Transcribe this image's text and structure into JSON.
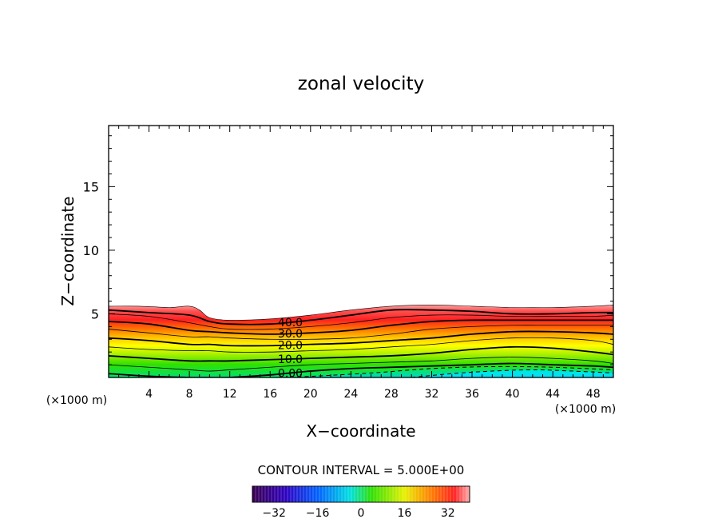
{
  "chart_data": {
    "type": "contour",
    "title": "zonal velocity",
    "xlabel": "X−coordinate",
    "ylabel": "Z−coordinate",
    "x_unit_left": "(×1000 m)",
    "x_unit_right": "(×1000 m)",
    "xlim": [
      0,
      50
    ],
    "ylim": [
      0,
      19.8
    ],
    "x_ticks": [
      "4",
      "8",
      "12",
      "16",
      "20",
      "24",
      "28",
      "32",
      "36",
      "40",
      "44",
      "48"
    ],
    "y_ticks": [
      "5",
      "10",
      "15"
    ],
    "contour_interval_text": "CONTOUR INTERVAL = 5.000E+00",
    "contour_labels": [
      "40.0",
      "30.0",
      "20.0",
      "10.0",
      "0.00"
    ],
    "colorbar": {
      "range": [
        -40,
        40
      ],
      "ticks": [
        "−32",
        "−16",
        "0",
        "16",
        "32"
      ]
    },
    "top_boundary": {
      "x": [
        0,
        3,
        6,
        8,
        9,
        10,
        12,
        16,
        20,
        24,
        28,
        32,
        36,
        40,
        44,
        48,
        50
      ],
      "z": [
        5.6,
        5.6,
        5.5,
        5.6,
        5.3,
        4.7,
        4.5,
        4.6,
        4.9,
        5.3,
        5.6,
        5.7,
        5.6,
        5.5,
        5.5,
        5.6,
        5.7
      ]
    },
    "x_grid": [
      0,
      4,
      8,
      10,
      12,
      16,
      20,
      24,
      28,
      32,
      36,
      40,
      44,
      48,
      50
    ],
    "contours": [
      {
        "level": 40,
        "z": [
          5.3,
          5.1,
          4.9,
          4.4,
          4.2,
          4.2,
          4.5,
          4.9,
          5.3,
          5.3,
          5.2,
          5.0,
          5.0,
          5.1,
          5.1
        ]
      },
      {
        "level": 35,
        "z": [
          5.0,
          4.8,
          4.3,
          4.0,
          3.8,
          3.8,
          4.0,
          4.3,
          4.7,
          4.9,
          4.9,
          4.8,
          4.8,
          4.8,
          4.9
        ]
      },
      {
        "level": 30,
        "z": [
          4.4,
          4.2,
          3.7,
          3.6,
          3.5,
          3.4,
          3.5,
          3.7,
          4.1,
          4.4,
          4.5,
          4.5,
          4.5,
          4.5,
          4.5
        ]
      },
      {
        "level": 25,
        "z": [
          3.8,
          3.5,
          3.2,
          3.2,
          3.1,
          3.0,
          3.0,
          3.1,
          3.4,
          3.8,
          4.0,
          4.1,
          4.1,
          4.1,
          4.1
        ]
      },
      {
        "level": 20,
        "z": [
          3.1,
          2.9,
          2.6,
          2.6,
          2.5,
          2.5,
          2.6,
          2.7,
          2.9,
          3.1,
          3.4,
          3.6,
          3.6,
          3.5,
          3.4
        ]
      },
      {
        "level": 15,
        "z": [
          2.4,
          2.2,
          2.1,
          2.1,
          2.0,
          2.0,
          2.1,
          2.2,
          2.4,
          2.6,
          2.9,
          3.1,
          3.1,
          2.9,
          2.6
        ]
      },
      {
        "level": 10,
        "z": [
          1.7,
          1.5,
          1.3,
          1.3,
          1.3,
          1.4,
          1.5,
          1.6,
          1.7,
          1.9,
          2.2,
          2.4,
          2.3,
          2.0,
          1.8
        ]
      },
      {
        "level": 5,
        "z": [
          1.0,
          0.8,
          0.6,
          0.5,
          0.6,
          0.8,
          1.0,
          1.1,
          1.2,
          1.3,
          1.5,
          1.6,
          1.5,
          1.3,
          1.1
        ]
      },
      {
        "level": 0,
        "z": [
          0.3,
          0.1,
          0.0,
          0.0,
          0.0,
          0.2,
          0.5,
          0.7,
          0.8,
          0.9,
          1.0,
          1.1,
          1.0,
          0.9,
          0.8
        ]
      }
    ],
    "negative_regions": [
      {
        "x": [
          18,
          26,
          32,
          38,
          44,
          50
        ],
        "z": [
          0.0,
          0.35,
          0.7,
          0.85,
          0.8,
          0.6
        ]
      },
      {
        "x": [
          30,
          34,
          38,
          42,
          46,
          50
        ],
        "z": [
          0.0,
          0.3,
          0.5,
          0.6,
          0.5,
          0.35
        ]
      }
    ]
  }
}
